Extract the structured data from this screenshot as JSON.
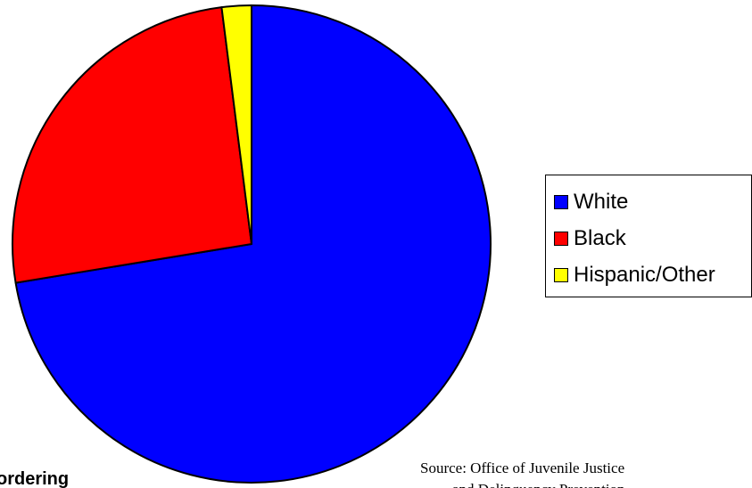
{
  "chart_data": {
    "type": "pie",
    "categories": [
      "White",
      "Black",
      "Hispanic/Other"
    ],
    "values": [
      72.4,
      25.6,
      2.0
    ],
    "colors": [
      "#0000ff",
      "#ff0000",
      "#ffff00"
    ],
    "start": "12 o'clock",
    "direction": "clockwise",
    "legend": {
      "placement": "right",
      "items": [
        {
          "label": "White",
          "color": "#0000ff"
        },
        {
          "label": "Black",
          "color": "#ff0000"
        },
        {
          "label": "Hispanic/Other",
          "color": "#ffff00"
        }
      ]
    }
  },
  "footer": {
    "cut_text": "ordering",
    "source_line1": "Source: Office of Juvenile Justice",
    "source_line2": "and Delinquency Prevention"
  }
}
